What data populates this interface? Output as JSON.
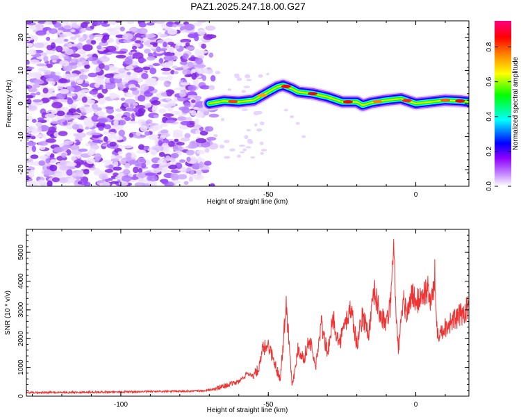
{
  "title": "PAZ1.2025.247.18.00.G27",
  "chart_data": [
    {
      "type": "heatmap",
      "xlabel": "Height of straight line (km)",
      "ylabel": "Frequency (Hz)",
      "xlim": [
        -132,
        18
      ],
      "ylim": [
        -25,
        25
      ],
      "xticks": [
        -100,
        -50,
        0
      ],
      "xtick_labels": [
        "-100",
        "-50",
        "0"
      ],
      "yticks": [
        -20,
        -10,
        0,
        10,
        20
      ],
      "ytick_labels": [
        "-20",
        "-10",
        "0",
        "10",
        "20"
      ],
      "colorbar": {
        "label": "Normalized spectral amplitude",
        "range": [
          0,
          0.95
        ],
        "ticks": [
          0.0,
          0.2,
          0.4,
          0.6,
          0.8
        ],
        "tick_labels": [
          "0.0",
          "0.2",
          "0.4",
          "0.6",
          "0.8"
        ],
        "colors": [
          "#ffffff",
          "#8f00ff",
          "#0000ff",
          "#00ffff",
          "#00ff00",
          "#ffff00",
          "#ff8000",
          "#ff0000",
          "#ff0080"
        ]
      },
      "noise_region": {
        "x_range": [
          -132,
          -68
        ],
        "freq_range": [
          -25,
          25
        ]
      },
      "signal_ridge": {
        "x": [
          -70,
          -65,
          -60,
          -55,
          -50,
          -47,
          -45,
          -42,
          -40,
          -35,
          -30,
          -25,
          -20,
          -18,
          -15,
          -10,
          -5,
          0,
          5,
          10,
          15,
          18
        ],
        "freq": [
          0,
          0.8,
          0.5,
          1.0,
          3.5,
          5.0,
          5.5,
          4.5,
          3.5,
          3.0,
          2.0,
          0.5,
          0.5,
          -0.5,
          0.3,
          1.0,
          1.5,
          0.0,
          0.5,
          1.0,
          0.8,
          0.5
        ]
      }
    },
    {
      "type": "line",
      "xlabel": "Height of straight line (km)",
      "ylabel": "SNR (10 * v/v)",
      "xlim": [
        -132,
        18
      ],
      "ylim": [
        0,
        5800
      ],
      "xticks": [
        -100,
        -50,
        0
      ],
      "xtick_labels": [
        "-100",
        "-50",
        "0"
      ],
      "yticks": [
        0,
        1000,
        2000,
        3000,
        4000,
        5000
      ],
      "ytick_labels": [
        "0",
        "1000",
        "2000",
        "3000",
        "4000",
        "5000"
      ],
      "series": [
        {
          "color": "#ee3333",
          "x": [
            -132,
            -120,
            -110,
            -100,
            -90,
            -80,
            -72,
            -68,
            -65,
            -60,
            -57,
            -55,
            -53,
            -52,
            -50,
            -48,
            -46,
            -45,
            -44,
            -43,
            -42,
            -41,
            -40,
            -38,
            -36,
            -34,
            -32,
            -30,
            -28,
            -26,
            -24,
            -22,
            -20,
            -18,
            -16,
            -14,
            -12,
            -10,
            -8.5,
            -8,
            -7.5,
            -7,
            -6,
            -5,
            -4,
            -3,
            -2,
            -1,
            0,
            2,
            4,
            5,
            6,
            6.5,
            7,
            7.5,
            8,
            10,
            12,
            14,
            16,
            18
          ],
          "y": [
            120,
            130,
            140,
            150,
            160,
            170,
            180,
            250,
            350,
            500,
            800,
            700,
            1000,
            1600,
            1800,
            1200,
            600,
            1800,
            3200,
            2000,
            500,
            800,
            1700,
            1300,
            2000,
            1000,
            2500,
            1500,
            2700,
            1800,
            2500,
            3100,
            1800,
            2800,
            2200,
            3600,
            2800,
            2500,
            3200,
            4200,
            5800,
            3500,
            1600,
            2500,
            3300,
            2800,
            3300,
            3600,
            3200,
            3500,
            3700,
            3300,
            3600,
            4300,
            2500,
            2300,
            2200,
            2400,
            2600,
            2700,
            2900,
            3100
          ]
        }
      ]
    }
  ]
}
